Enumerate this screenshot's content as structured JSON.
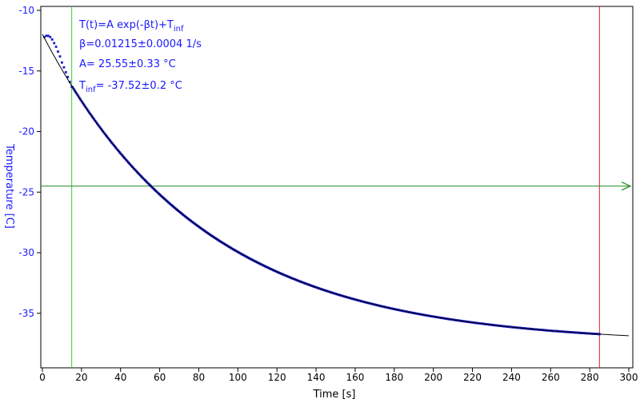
{
  "chart_data": {
    "type": "scatter",
    "xlabel": "Time [s]",
    "ylabel": "Temperature [C]",
    "xlim": [
      0,
      300
    ],
    "ylim": [
      -39.5,
      -10
    ],
    "x_ticks": [
      0,
      20,
      40,
      60,
      80,
      100,
      120,
      140,
      160,
      180,
      200,
      220,
      240,
      260,
      280,
      300
    ],
    "y_ticks": [
      -10,
      -15,
      -20,
      -25,
      -30,
      -35
    ],
    "annotations": {
      "model": "T(t)=A exp(-βt)+T",
      "model_sub": "inf",
      "beta": "β=0.01215±0.0004 1/s",
      "amp": "A= 25.55±0.33 °C",
      "tinf_prefix": "T",
      "tinf_sub": "inf",
      "tinf_value": "= -37.52±0.2 °C"
    },
    "fit": {
      "A": 25.55,
      "beta": 0.01215,
      "T_inf": -37.52,
      "x_range": [
        0,
        300
      ]
    },
    "measured": {
      "x_range": [
        1,
        285
      ],
      "early_points": [
        [
          1,
          -12.2
        ],
        [
          2,
          -12.1
        ],
        [
          3,
          -12.1
        ],
        [
          4,
          -12.2
        ],
        [
          5,
          -12.4
        ],
        [
          6,
          -12.7
        ],
        [
          7,
          -13.0
        ],
        [
          8,
          -13.4
        ],
        [
          9,
          -13.8
        ],
        [
          10,
          -14.3
        ],
        [
          11,
          -14.7
        ],
        [
          12,
          -15.1
        ],
        [
          13,
          -15.5
        ],
        [
          14,
          -15.9
        ],
        [
          15,
          -16.3
        ]
      ]
    },
    "markers": {
      "start_time": 15,
      "end_time": 285,
      "level_temperature": -24.5
    },
    "colors": {
      "data": "#1a1acc",
      "fit": "#000000",
      "start_marker": "#33cc33",
      "end_marker": "#dd2222",
      "level_marker": "#228822",
      "y_axis_text": "#1a1aff"
    },
    "grid": false
  }
}
